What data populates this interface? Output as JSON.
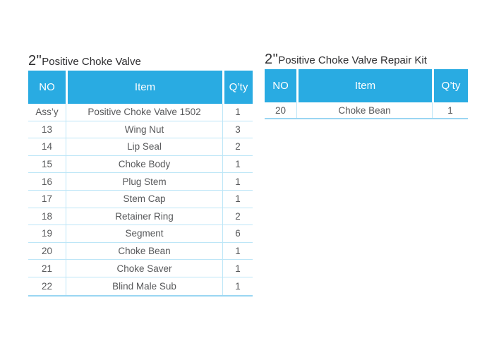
{
  "colors": {
    "header_bg": "#29abe2",
    "header_text": "#ffffff",
    "row_divider": "#bde6f7",
    "table_bottom_border": "#9ad6f2",
    "body_text": "#57585a",
    "title_text": "#2d2d2f"
  },
  "left_table": {
    "title_prefix": "2\"",
    "title": "Positive Choke Valve",
    "columns": [
      "NO",
      "Item",
      "Q’ty"
    ],
    "rows": [
      {
        "no": "Ass’y",
        "item": "Positive Choke Valve 1502",
        "qty": "1"
      },
      {
        "no": "13",
        "item": "Wing Nut",
        "qty": "3"
      },
      {
        "no": "14",
        "item": "Lip Seal",
        "qty": "2"
      },
      {
        "no": "15",
        "item": "Choke Body",
        "qty": "1"
      },
      {
        "no": "16",
        "item": "Plug Stem",
        "qty": "1"
      },
      {
        "no": "17",
        "item": "Stem Cap",
        "qty": "1"
      },
      {
        "no": "18",
        "item": "Retainer Ring",
        "qty": "2"
      },
      {
        "no": "19",
        "item": "Segment",
        "qty": "6"
      },
      {
        "no": "20",
        "item": "Choke Bean",
        "qty": "1"
      },
      {
        "no": "21",
        "item": "Choke Saver",
        "qty": "1"
      },
      {
        "no": "22",
        "item": "Blind Male Sub",
        "qty": "1"
      }
    ]
  },
  "right_table": {
    "title_prefix": "2\"",
    "title": "Positive Choke Valve Repair Kit",
    "columns": [
      "NO",
      "Item",
      "Q’ty"
    ],
    "rows": [
      {
        "no": "20",
        "item": "Choke Bean",
        "qty": "1"
      }
    ]
  }
}
